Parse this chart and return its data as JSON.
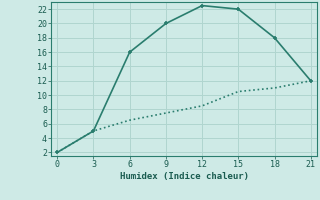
{
  "line1_x": [
    0,
    3,
    6,
    9,
    12,
    15,
    18,
    21
  ],
  "line1_y": [
    2,
    5,
    16,
    20,
    22.5,
    22,
    18,
    12
  ],
  "line2_x": [
    0,
    3,
    6,
    9,
    12,
    15,
    18,
    21
  ],
  "line2_y": [
    2,
    5,
    6.5,
    7.5,
    8.5,
    10.5,
    11,
    12
  ],
  "line_color": "#2a7d6e",
  "bg_color": "#ceeae6",
  "grid_color": "#b0d5cf",
  "xlabel": "Humidex (Indice chaleur)",
  "xlim": [
    -0.5,
    21.5
  ],
  "ylim": [
    1.5,
    23
  ],
  "xticks": [
    0,
    3,
    6,
    9,
    12,
    15,
    18,
    21
  ],
  "yticks": [
    2,
    4,
    6,
    8,
    10,
    12,
    14,
    16,
    18,
    20,
    22
  ],
  "markersize": 3.5,
  "linewidth": 1.2
}
